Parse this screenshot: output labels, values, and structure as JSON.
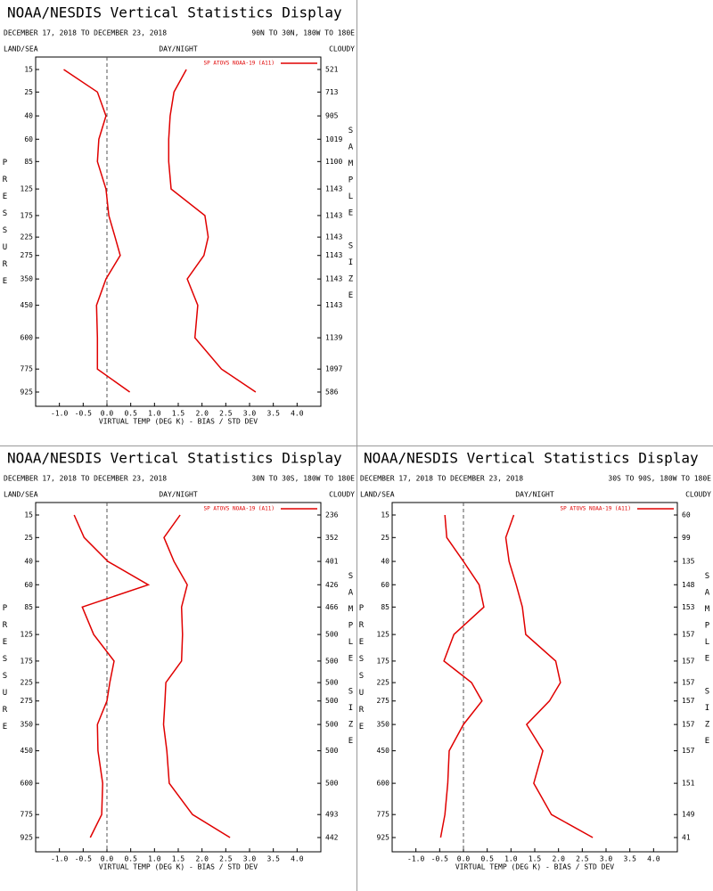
{
  "chart_data": [
    {
      "type": "line",
      "title": "NOAA/NESDIS Vertical Statistics Display",
      "subtitle": "DECEMBER 17, 2018 TO DECEMBER 23, 2018",
      "region": "90N TO 30N, 180W TO 180E",
      "surface": "LAND/SEA",
      "time": "DAY/NIGHT",
      "sky": "CLOUDY",
      "y_label": "PRESSURE",
      "y2_label": "SAMPLE SIZE",
      "x_label": "VIRTUAL TEMP (DEG K) - BIAS / STD DEV",
      "levels": [
        15,
        25,
        40,
        60,
        85,
        125,
        175,
        225,
        275,
        350,
        450,
        600,
        775,
        925
      ],
      "sample_size": [
        521,
        713,
        905,
        1019,
        1100,
        1143,
        1143,
        1143,
        1143,
        1143,
        1143,
        1139,
        1097,
        586
      ],
      "series": [
        {
          "name": "SP ATOVS NOAA-19 (A11)",
          "color": "#e00000",
          "bias": [
            -0.91,
            -0.2,
            -0.02,
            -0.17,
            -0.2,
            -0.02,
            0.04,
            0.17,
            0.28,
            -0.02,
            -0.22,
            -0.2,
            -0.2,
            0.48
          ],
          "std_dev": [
            1.67,
            1.41,
            1.33,
            1.3,
            1.3,
            1.35,
            2.06,
            2.13,
            2.04,
            1.69,
            1.91,
            1.85,
            2.41,
            3.13
          ]
        }
      ],
      "xlim": [
        -1.5,
        4.5
      ],
      "xticks": [
        {
          "value": -1,
          "label": "-1.0"
        },
        {
          "value": -0.5,
          "label": "-0.5"
        },
        {
          "value": 0,
          "label": "0.0"
        },
        {
          "value": 0.5,
          "label": "0.5"
        },
        {
          "value": 1,
          "label": "1.0"
        },
        {
          "value": 1.5,
          "label": "1.5"
        },
        {
          "value": 2,
          "label": "2.0"
        },
        {
          "value": 2.5,
          "label": "2.5"
        },
        {
          "value": 3,
          "label": "3.0"
        },
        {
          "value": 3.5,
          "label": "3.5"
        },
        {
          "value": 4,
          "label": "4.0"
        }
      ]
    },
    {
      "type": "line",
      "title": "NOAA/NESDIS Vertical Statistics Display",
      "subtitle": "DECEMBER 17, 2018 TO DECEMBER 23, 2018",
      "region": "30N TO 30S, 180W TO 180E",
      "surface": "LAND/SEA",
      "time": "DAY/NIGHT",
      "sky": "CLOUDY",
      "y_label": "PRESSURE",
      "y2_label": "SAMPLE SIZE",
      "x_label": "VIRTUAL TEMP (DEG K) - BIAS / STD DEV",
      "levels": [
        15,
        25,
        40,
        60,
        85,
        125,
        175,
        225,
        275,
        350,
        450,
        600,
        775,
        925
      ],
      "sample_size": [
        236,
        352,
        401,
        426,
        466,
        500,
        500,
        500,
        500,
        500,
        500,
        500,
        493,
        442
      ],
      "series": [
        {
          "name": "SP ATOVS NOAA-19 (A11)",
          "color": "#e00000",
          "bias": [
            -0.69,
            -0.48,
            0.02,
            0.87,
            -0.52,
            -0.28,
            0.15,
            0.06,
            0,
            -0.2,
            -0.19,
            -0.09,
            -0.11,
            -0.35
          ],
          "std_dev": [
            1.54,
            1.2,
            1.41,
            1.69,
            1.57,
            1.59,
            1.57,
            1.24,
            1.22,
            1.19,
            1.26,
            1.31,
            1.8,
            2.59
          ]
        }
      ],
      "xlim": [
        -1.5,
        4.5
      ],
      "xticks": [
        {
          "value": -1,
          "label": "-1.0"
        },
        {
          "value": -0.5,
          "label": "-0.5"
        },
        {
          "value": 0,
          "label": "0.0"
        },
        {
          "value": 0.5,
          "label": "0.5"
        },
        {
          "value": 1,
          "label": "1.0"
        },
        {
          "value": 1.5,
          "label": "1.5"
        },
        {
          "value": 2,
          "label": "2.0"
        },
        {
          "value": 2.5,
          "label": "2.5"
        },
        {
          "value": 3,
          "label": "3.0"
        },
        {
          "value": 3.5,
          "label": "3.5"
        },
        {
          "value": 4,
          "label": "4.0"
        }
      ]
    },
    {
      "type": "line",
      "title": "NOAA/NESDIS Vertical Statistics Display",
      "subtitle": "DECEMBER 17, 2018 TO DECEMBER 23, 2018",
      "region": "30S TO 90S, 180W TO 180E",
      "surface": "LAND/SEA",
      "time": "DAY/NIGHT",
      "sky": "CLOUDY",
      "y_label": "PRESSURE",
      "y2_label": "SAMPLE SIZE",
      "x_label": "VIRTUAL TEMP (DEG K) - BIAS / STD DEV",
      "levels": [
        15,
        25,
        40,
        60,
        85,
        125,
        175,
        225,
        275,
        350,
        450,
        600,
        775,
        925
      ],
      "sample_size": [
        60,
        99,
        135,
        148,
        153,
        157,
        157,
        157,
        157,
        157,
        157,
        151,
        149,
        41
      ],
      "series": [
        {
          "name": "SP ATOVS NOAA-19 (A11)",
          "color": "#e00000",
          "bias": [
            -0.39,
            -0.35,
            0,
            0.33,
            0.43,
            -0.2,
            -0.41,
            0.17,
            0.39,
            0,
            -0.3,
            -0.33,
            -0.39,
            -0.48
          ],
          "std_dev": [
            1.06,
            0.89,
            0.96,
            1.11,
            1.24,
            1.31,
            1.94,
            2.04,
            1.81,
            1.33,
            1.67,
            1.48,
            1.85,
            2.72
          ]
        }
      ],
      "xlim": [
        -1.5,
        4.5
      ],
      "xticks": [
        {
          "value": -1,
          "label": "-1.0"
        },
        {
          "value": -0.5,
          "label": "-0.5"
        },
        {
          "value": 0,
          "label": "0.0"
        },
        {
          "value": 0.5,
          "label": "0.5"
        },
        {
          "value": 1,
          "label": "1.0"
        },
        {
          "value": 1.5,
          "label": "1.5"
        },
        {
          "value": 2,
          "label": "2.0"
        },
        {
          "value": 2.5,
          "label": "2.5"
        },
        {
          "value": 3,
          "label": "3.0"
        },
        {
          "value": 3.5,
          "label": "3.5"
        },
        {
          "value": 4,
          "label": "4.0"
        }
      ]
    }
  ]
}
